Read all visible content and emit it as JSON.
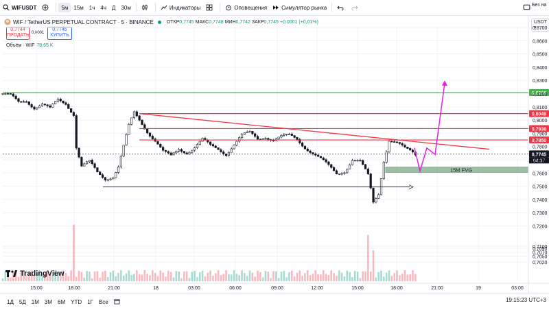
{
  "topbar": {
    "symbol": "WIFUSDT",
    "intervals": [
      "5м",
      "15м",
      "1ч",
      "4ч",
      "Д",
      "30м"
    ],
    "active_interval": "5м",
    "indicators_label": "Индикаторы",
    "alerts_label": "Оповещения",
    "replay_label": "Симулятор рынка",
    "right_text": "Без на"
  },
  "legend": {
    "title": "WIF / TetherUS PERPETUAL CONTRACT · 5 · BINANCE",
    "open_label": "ОТКР",
    "open": "0,7745",
    "high_label": "МАКС",
    "high": "0,7748",
    "low_label": "МИН",
    "low": "0,7742",
    "close_label": "ЗАКР",
    "close": "0,7745",
    "change": "+0,0001 (+0,01%)",
    "sell_price": "0,7744",
    "sell_label": "ПРОДАТЬ",
    "spread": "0,0001",
    "buy_price": "0,7745",
    "buy_label": "КУПИТЬ",
    "volume_label": "Объём · WIF",
    "volume_value": "78,65 K"
  },
  "currency": "USDT",
  "chart_data": {
    "type": "candlestick",
    "y_ticks": [
      "0,8700",
      "0,8600",
      "0,8500",
      "0,8400",
      "0,8300",
      "0,8200",
      "0,8100",
      "0,8000",
      "0,7900",
      "0,7800",
      "0,7700",
      "0,7600",
      "0,7500",
      "0,7400",
      "0,7300",
      "0,7200",
      "0,7100",
      "0,7090",
      "0,7070",
      "0,7050",
      "0,7020"
    ],
    "x_ticks": [
      "15:00",
      "18:00",
      "21:00",
      "18",
      "03:00",
      "06:00",
      "09:00",
      "12:00",
      "15:00",
      "18:00",
      "21:00",
      "19",
      "03:00"
    ],
    "ylim": [
      0.702,
      0.87
    ],
    "close_path": [
      [
        0,
        0.82
      ],
      [
        3,
        0.818
      ],
      [
        6,
        0.813
      ],
      [
        9,
        0.815
      ],
      [
        12,
        0.81
      ],
      [
        15,
        0.812
      ],
      [
        18,
        0.808
      ],
      [
        21,
        0.815
      ],
      [
        24,
        0.813
      ],
      [
        27,
        0.805
      ],
      [
        28,
        0.78
      ],
      [
        30,
        0.765
      ],
      [
        33,
        0.768
      ],
      [
        36,
        0.76
      ],
      [
        39,
        0.756
      ],
      [
        42,
        0.758
      ],
      [
        44,
        0.765
      ],
      [
        46,
        0.78
      ],
      [
        48,
        0.795
      ],
      [
        50,
        0.805
      ],
      [
        52,
        0.8
      ],
      [
        55,
        0.792
      ],
      [
        58,
        0.785
      ],
      [
        61,
        0.776
      ],
      [
        64,
        0.772
      ],
      [
        67,
        0.778
      ],
      [
        70,
        0.776
      ],
      [
        73,
        0.78
      ],
      [
        76,
        0.785
      ],
      [
        79,
        0.78
      ],
      [
        82,
        0.778
      ],
      [
        85,
        0.775
      ],
      [
        88,
        0.782
      ],
      [
        91,
        0.788
      ],
      [
        94,
        0.79
      ],
      [
        97,
        0.786
      ],
      [
        100,
        0.788
      ],
      [
        103,
        0.785
      ],
      [
        106,
        0.787
      ],
      [
        109,
        0.788
      ],
      [
        112,
        0.786
      ],
      [
        115,
        0.78
      ],
      [
        118,
        0.775
      ],
      [
        121,
        0.77
      ],
      [
        124,
        0.765
      ],
      [
        127,
        0.76
      ],
      [
        130,
        0.762
      ],
      [
        133,
        0.77
      ],
      [
        136,
        0.768
      ],
      [
        139,
        0.758
      ],
      [
        141,
        0.738
      ],
      [
        143,
        0.745
      ],
      [
        145,
        0.77
      ],
      [
        147,
        0.785
      ],
      [
        150,
        0.782
      ],
      [
        153,
        0.778
      ],
      [
        156,
        0.776
      ],
      [
        157,
        0.7745
      ]
    ],
    "volume_spikes": [
      [
        27,
        0.55
      ],
      [
        139,
        0.45
      ],
      [
        141,
        0.3
      ]
    ],
    "levels": [
      {
        "label": "0,8208",
        "value": 0.8208,
        "color": "#4caf50"
      },
      {
        "label": "0,8049",
        "value": 0.8049,
        "color": "#f23645"
      },
      {
        "label": "0,7936",
        "value": 0.7936,
        "color": "#f23645"
      },
      {
        "label": "0,7850",
        "value": 0.785,
        "color": "#f23645"
      },
      {
        "label": "0,7745",
        "value": 0.7745,
        "color": "#131722"
      }
    ],
    "last_price_label": "0,7745",
    "countdown": "04:37",
    "fvg_label": "15M FVG",
    "fvg_range": [
      0.7605,
      0.7645
    ]
  },
  "watermark": "TradingView",
  "bottombar": {
    "ranges": [
      "1Д",
      "5Д",
      "1М",
      "3М",
      "6М",
      "YTD",
      "1Г",
      "Все"
    ],
    "clock": "19:15:23 UTC+3"
  }
}
